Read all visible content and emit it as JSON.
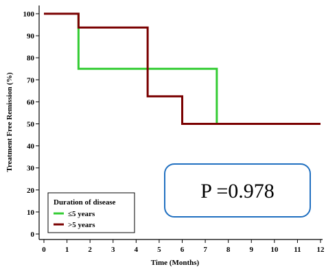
{
  "chart_data": {
    "type": "line",
    "title": "",
    "xlabel": "Time (Months)",
    "ylabel": "Treatment Free Remission  (%)",
    "xlim": [
      0,
      12
    ],
    "ylim": [
      0,
      100
    ],
    "x_ticks": [
      "0",
      "1",
      "2",
      "3",
      "4",
      "5",
      "6",
      "7",
      "8",
      "9",
      "10",
      "11",
      "12"
    ],
    "y_ticks": [
      "0",
      "10",
      "20",
      "30",
      "40",
      "50",
      "60",
      "70",
      "80",
      "90",
      "100"
    ],
    "step": true,
    "grid": false,
    "legend": {
      "title": "Duration of disease",
      "position": "bottom-left"
    },
    "series": [
      {
        "name": "≤5 years",
        "color": "#33cc33",
        "points": [
          [
            0,
            100
          ],
          [
            1.5,
            100
          ],
          [
            1.5,
            75
          ],
          [
            7.5,
            75
          ],
          [
            7.5,
            50
          ],
          [
            12,
            50
          ]
        ]
      },
      {
        "name": ">5 years",
        "color": "#7a0000",
        "points": [
          [
            0,
            100
          ],
          [
            1.5,
            100
          ],
          [
            1.5,
            93.75
          ],
          [
            4.5,
            93.75
          ],
          [
            4.5,
            62.5
          ],
          [
            6,
            62.5
          ],
          [
            6,
            50
          ],
          [
            12,
            50
          ]
        ]
      }
    ],
    "annotation": {
      "text": "P =0.978",
      "border_color": "#1f6fc0"
    }
  }
}
